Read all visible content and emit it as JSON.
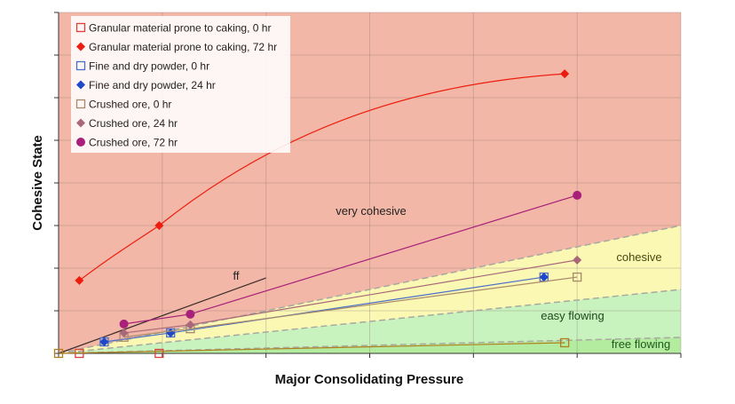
{
  "chart_data": {
    "type": "line",
    "title": "",
    "xlabel": "Major Consolidating Pressure",
    "ylabel": "Cohesive State",
    "xlim": [
      0,
      6
    ],
    "ylim": [
      0,
      8
    ],
    "grid": true,
    "tick_labels_shown": false,
    "legend_position": "top-left",
    "zones": [
      {
        "label": "very cohesive",
        "color": "#f2b7a6"
      },
      {
        "label": "cohesive",
        "color": "#fbf8b4",
        "upper_slope": 0.5
      },
      {
        "label": "easy flowing",
        "color": "#c8f3bf",
        "upper_slope": 0.25
      },
      {
        "label": "free flowing",
        "color": "#b4ec9f",
        "upper_slope": 0.0625
      }
    ],
    "reference_line": {
      "label": "ff",
      "x": [
        0,
        2.0
      ],
      "y": [
        0,
        1.77
      ],
      "color": "#3a2a2a"
    },
    "series": [
      {
        "name": "Granular material prone to caking, 0 hr",
        "marker": "open-square",
        "color": "#d9403a",
        "x": [
          0.2,
          0.97
        ],
        "y": [
          0,
          0
        ],
        "line": false
      },
      {
        "name": "Granular material prone to caking, 72 hr",
        "marker": "diamond",
        "color": "#ee1c0e",
        "x": [
          0.2,
          0.97,
          4.88
        ],
        "y": [
          1.71,
          3.0,
          6.56
        ],
        "line": true
      },
      {
        "name": "Fine and dry powder, 0 hr",
        "marker": "open-square",
        "color": "#4a6fc8",
        "x": [
          0.44,
          1.08,
          4.68
        ],
        "y": [
          0.27,
          0.48,
          1.79
        ],
        "line": true
      },
      {
        "name": "Fine and dry powder, 24 hr",
        "marker": "diamond",
        "color": "#1f47c8",
        "x": [
          0.44,
          1.08,
          4.68
        ],
        "y": [
          0.27,
          0.48,
          1.79
        ],
        "line": false
      },
      {
        "name": "Crushed ore, 0 hr",
        "marker": "open-square",
        "color": "#a88a6a",
        "x": [
          0.63,
          1.27,
          5.0
        ],
        "y": [
          0.38,
          0.58,
          1.79
        ],
        "line": true
      },
      {
        "name": "Crushed ore, 24 hr",
        "marker": "diamond",
        "color": "#a8687a",
        "x": [
          0.63,
          1.27,
          5.0
        ],
        "y": [
          0.48,
          0.67,
          2.19
        ],
        "line": true
      },
      {
        "name": "Crushed ore, 72 hr",
        "marker": "circle",
        "color": "#a8207a",
        "x": [
          0.63,
          1.27,
          5.0
        ],
        "y": [
          0.69,
          0.92,
          3.71
        ],
        "line": true
      },
      {
        "marker": "open-square",
        "color": "#b08020",
        "x": [
          0,
          4.88
        ],
        "y": [
          0,
          0.25
        ],
        "line": true,
        "in_legend": false
      }
    ]
  }
}
